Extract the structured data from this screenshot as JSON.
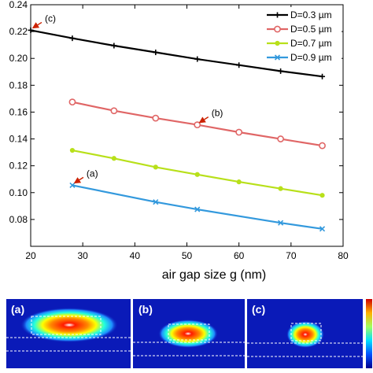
{
  "chart_data": {
    "type": "line",
    "xlabel": "air gap size g (nm)",
    "ylabel": "",
    "xlim": [
      20,
      80
    ],
    "ylim": [
      0.06,
      0.24
    ],
    "xticks": [
      20,
      30,
      40,
      50,
      60,
      70,
      80
    ],
    "yticks": [
      0.08,
      0.1,
      0.12,
      0.14,
      0.16,
      0.18,
      0.2,
      0.22,
      0.24
    ],
    "grid": false,
    "legend_position": "top-right",
    "series": [
      {
        "name": "D=0.3 µm",
        "color": "#000000",
        "marker": "plus",
        "x": [
          20,
          28,
          36,
          44,
          52,
          60,
          68,
          76
        ],
        "y": [
          0.221,
          0.215,
          0.2095,
          0.2045,
          0.1995,
          0.195,
          0.1905,
          0.1865
        ]
      },
      {
        "name": "D=0.5 µm",
        "color": "#e06666",
        "marker": "circle",
        "x": [
          28,
          36,
          44,
          52,
          60,
          68,
          76
        ],
        "y": [
          0.1675,
          0.161,
          0.1555,
          0.1505,
          0.145,
          0.14,
          0.135
        ]
      },
      {
        "name": "D=0.7 µm",
        "color": "#b8e01a",
        "marker": "dot",
        "x": [
          28,
          36,
          44,
          52,
          60,
          68,
          76
        ],
        "y": [
          0.1315,
          0.1255,
          0.119,
          0.1135,
          0.108,
          0.103,
          0.098
        ]
      },
      {
        "name": "D=0.9 µm",
        "color": "#3399dd",
        "marker": "x",
        "x": [
          28,
          44,
          52,
          68,
          76
        ],
        "y": [
          0.1055,
          0.093,
          0.0875,
          0.0775,
          0.073
        ]
      }
    ],
    "annotations": [
      {
        "label": "(c)",
        "x": 20,
        "y": 0.221
      },
      {
        "label": "(b)",
        "x": 52,
        "y": 0.1505
      },
      {
        "label": "(a)",
        "x": 28,
        "y": 0.1055
      }
    ]
  },
  "panels": [
    {
      "label": "(a)"
    },
    {
      "label": "(b)"
    },
    {
      "label": "(c)"
    }
  ],
  "colors": {
    "field_background": "#0a1ab8",
    "annotation_arrow": "#cc2200"
  }
}
